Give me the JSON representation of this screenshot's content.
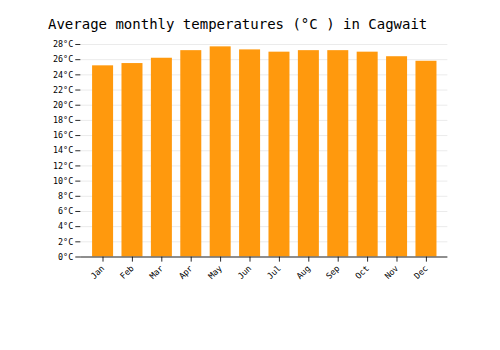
{
  "chart_data": {
    "type": "bar",
    "title": "Average monthly temperatures (°C ) in Cagwait",
    "categories": [
      "Jan",
      "Feb",
      "Mar",
      "Apr",
      "May",
      "Jun",
      "Jul",
      "Aug",
      "Sep",
      "Oct",
      "Nov",
      "Dec"
    ],
    "values": [
      25.2,
      25.5,
      26.2,
      27.2,
      27.7,
      27.3,
      27.0,
      27.2,
      27.2,
      27.0,
      26.4,
      25.8
    ],
    "color": "#FF990D",
    "ylim": [
      0,
      28
    ],
    "yticks": [
      {
        "value": 0,
        "label": "0°C"
      },
      {
        "value": 2,
        "label": "2°C"
      },
      {
        "value": 4,
        "label": "4°C"
      },
      {
        "value": 6,
        "label": "6°C"
      },
      {
        "value": 8,
        "label": "8°C"
      },
      {
        "value": 10,
        "label": "10°C"
      },
      {
        "value": 12,
        "label": "12°C"
      },
      {
        "value": 14,
        "label": "14°C"
      },
      {
        "value": 16,
        "label": "16°C"
      },
      {
        "value": 18,
        "label": "18°C"
      },
      {
        "value": 20,
        "label": "20°C"
      },
      {
        "value": 22,
        "label": "22°C"
      },
      {
        "value": 24,
        "label": "24°C"
      },
      {
        "value": 26,
        "label": "26°C"
      },
      {
        "value": 28,
        "label": "28°C"
      }
    ],
    "grid": true
  }
}
